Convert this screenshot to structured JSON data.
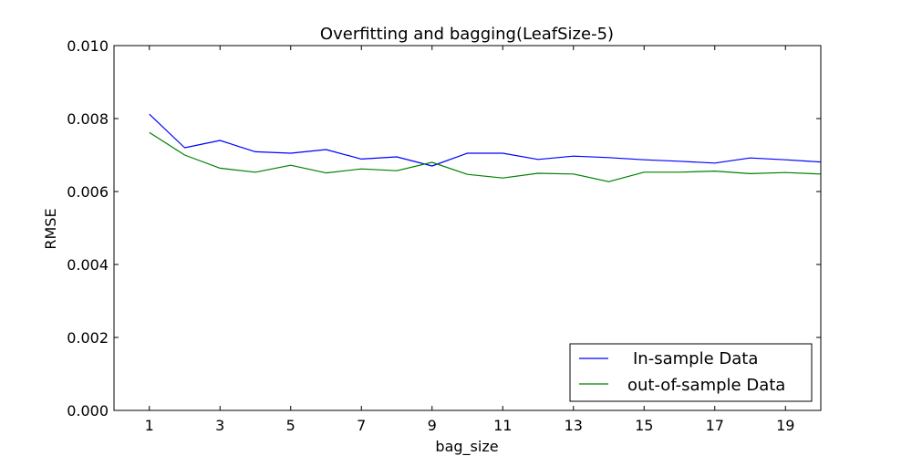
{
  "chart_data": {
    "type": "line",
    "title": "Overfitting and bagging(LeafSize-5)",
    "xlabel": "bag_size",
    "ylabel": "RMSE",
    "xlim": [
      0,
      20
    ],
    "ylim": [
      0.0,
      0.01
    ],
    "xticks": [
      1,
      3,
      5,
      7,
      9,
      11,
      13,
      15,
      17,
      19
    ],
    "xtick_labels": [
      "1",
      "3",
      "5",
      "7",
      "9",
      "11",
      "13",
      "15",
      "17",
      "19"
    ],
    "yticks": [
      0.0,
      0.002,
      0.004,
      0.006,
      0.008,
      0.01
    ],
    "ytick_labels": [
      "0.000",
      "0.002",
      "0.004",
      "0.006",
      "0.008",
      "0.010"
    ],
    "grid": false,
    "legend_position": "bottom-right",
    "x": [
      1,
      2,
      3,
      4,
      5,
      6,
      7,
      8,
      9,
      10,
      11,
      12,
      13,
      14,
      15,
      16,
      17,
      18,
      19,
      20
    ],
    "series": [
      {
        "name": "In-sample Data",
        "color": "#0000ff",
        "values": [
          0.00812,
          0.0072,
          0.0074,
          0.00709,
          0.00705,
          0.00715,
          0.00689,
          0.00695,
          0.0067,
          0.00705,
          0.00705,
          0.00688,
          0.00697,
          0.00693,
          0.00687,
          0.00683,
          0.00678,
          0.00692,
          0.00687,
          0.00681
        ]
      },
      {
        "name": "out-of-sample Data",
        "color": "#008000",
        "values": [
          0.00762,
          0.007,
          0.00664,
          0.00653,
          0.00672,
          0.00651,
          0.00662,
          0.00657,
          0.0068,
          0.00647,
          0.00637,
          0.0065,
          0.00648,
          0.00627,
          0.00653,
          0.00653,
          0.00656,
          0.00649,
          0.00652,
          0.00648
        ]
      }
    ]
  }
}
